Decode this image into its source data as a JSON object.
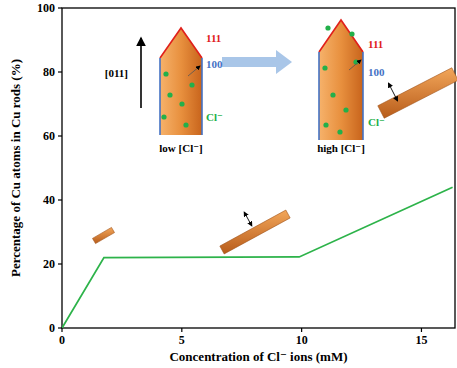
{
  "chart_data": {
    "type": "line",
    "x_label": "Concentration of Cl⁻ ions (mM)",
    "y_label": "Percentage of Cu atoms in Cu rods (%)",
    "x": [
      0,
      1.75,
      9.9,
      16.3
    ],
    "values": [
      0,
      22,
      22.2,
      44
    ],
    "color": "#2db34a",
    "marker": "none",
    "xlim": [
      0,
      16.4
    ],
    "xticks": [
      0,
      5,
      10,
      15
    ],
    "ylim": [
      0,
      100
    ],
    "yticks": [
      0,
      20,
      40,
      60,
      80,
      100
    ],
    "grid": false,
    "annotations": [
      "[011]",
      "111",
      "100",
      "Cl⁻",
      "low [Cl⁻]",
      "111",
      "100",
      "Cl⁻",
      "high [Cl⁻]"
    ]
  }
}
